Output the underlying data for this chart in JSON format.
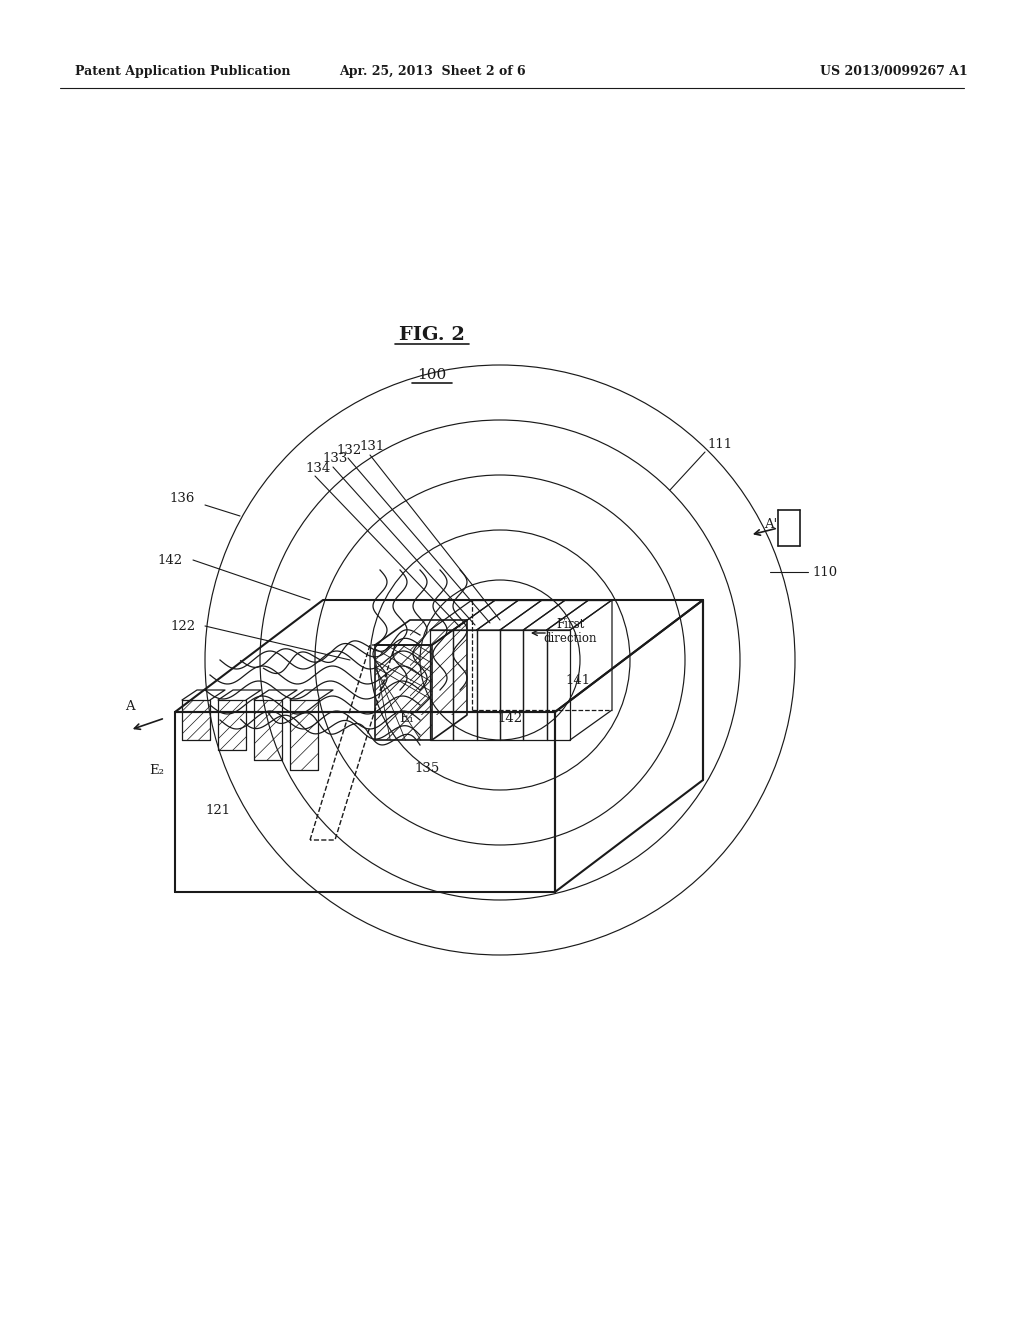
{
  "bg_color": "#ffffff",
  "header_left": "Patent Application Publication",
  "header_mid": "Apr. 25, 2013  Sheet 2 of 6",
  "header_right": "US 2013/0099267 A1",
  "fig_title": "FIG. 2",
  "ref_num": "100"
}
